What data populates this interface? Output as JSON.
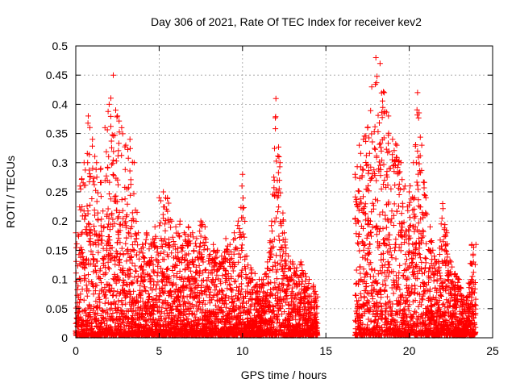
{
  "chart_data": {
    "type": "scatter",
    "title": "Day 306 of 2021, Rate Of TEC Index for receiver kev2",
    "xlabel": "GPS time / hours",
    "ylabel": "ROTI / TECUs",
    "xlim": [
      0,
      25
    ],
    "ylim": [
      0,
      0.5
    ],
    "x_ticks": [
      0,
      5,
      10,
      15,
      20,
      25
    ],
    "y_ticks": [
      0,
      0.05,
      0.1,
      0.15,
      0.2,
      0.25,
      0.3,
      0.35,
      0.4,
      0.45,
      0.5
    ],
    "grid": true,
    "marker": "+",
    "marker_color": "#ff0000",
    "data_gap_hours": [
      14.7,
      16.6
    ],
    "envelope": [
      [
        0.0,
        0.18
      ],
      [
        0.25,
        0.26
      ],
      [
        0.5,
        0.3
      ],
      [
        0.75,
        0.38
      ],
      [
        1.0,
        0.34
      ],
      [
        1.25,
        0.3
      ],
      [
        1.5,
        0.29
      ],
      [
        1.75,
        0.36
      ],
      [
        2.0,
        0.4
      ],
      [
        2.25,
        0.45
      ],
      [
        2.5,
        0.38
      ],
      [
        2.75,
        0.36
      ],
      [
        3.0,
        0.33
      ],
      [
        3.25,
        0.34
      ],
      [
        3.5,
        0.3
      ],
      [
        3.75,
        0.18
      ],
      [
        4.0,
        0.16
      ],
      [
        4.25,
        0.18
      ],
      [
        4.5,
        0.16
      ],
      [
        4.75,
        0.19
      ],
      [
        5.0,
        0.24
      ],
      [
        5.25,
        0.25
      ],
      [
        5.5,
        0.24
      ],
      [
        5.75,
        0.2
      ],
      [
        6.0,
        0.19
      ],
      [
        6.25,
        0.2
      ],
      [
        6.5,
        0.18
      ],
      [
        6.75,
        0.19
      ],
      [
        7.0,
        0.18
      ],
      [
        7.25,
        0.17
      ],
      [
        7.5,
        0.2
      ],
      [
        7.75,
        0.19
      ],
      [
        8.0,
        0.14
      ],
      [
        8.25,
        0.16
      ],
      [
        8.5,
        0.15
      ],
      [
        8.75,
        0.14
      ],
      [
        9.0,
        0.17
      ],
      [
        9.25,
        0.16
      ],
      [
        9.5,
        0.18
      ],
      [
        9.75,
        0.2
      ],
      [
        10.0,
        0.28
      ],
      [
        10.25,
        0.14
      ],
      [
        10.5,
        0.12
      ],
      [
        10.75,
        0.11
      ],
      [
        11.0,
        0.1
      ],
      [
        11.25,
        0.1
      ],
      [
        11.5,
        0.13
      ],
      [
        11.75,
        0.2
      ],
      [
        12.0,
        0.41
      ],
      [
        12.25,
        0.3
      ],
      [
        12.5,
        0.18
      ],
      [
        12.75,
        0.14
      ],
      [
        13.0,
        0.13
      ],
      [
        13.25,
        0.12
      ],
      [
        13.5,
        0.13
      ],
      [
        13.75,
        0.11
      ],
      [
        14.0,
        0.1
      ],
      [
        14.25,
        0.09
      ],
      [
        14.5,
        0.07
      ],
      [
        16.75,
        0.28
      ],
      [
        17.0,
        0.33
      ],
      [
        17.25,
        0.34
      ],
      [
        17.5,
        0.36
      ],
      [
        17.75,
        0.43
      ],
      [
        18.0,
        0.48
      ],
      [
        18.25,
        0.47
      ],
      [
        18.5,
        0.42
      ],
      [
        18.75,
        0.38
      ],
      [
        19.0,
        0.34
      ],
      [
        19.25,
        0.33
      ],
      [
        19.5,
        0.3
      ],
      [
        19.75,
        0.26
      ],
      [
        20.0,
        0.25
      ],
      [
        20.25,
        0.3
      ],
      [
        20.5,
        0.42
      ],
      [
        20.75,
        0.33
      ],
      [
        21.0,
        0.24
      ],
      [
        21.25,
        0.19
      ],
      [
        21.5,
        0.14
      ],
      [
        21.75,
        0.13
      ],
      [
        22.0,
        0.23
      ],
      [
        22.25,
        0.18
      ],
      [
        22.5,
        0.13
      ],
      [
        22.75,
        0.11
      ],
      [
        23.0,
        0.1
      ],
      [
        23.25,
        0.07
      ],
      [
        23.5,
        0.07
      ],
      [
        23.75,
        0.16
      ],
      [
        24.0,
        0.16
      ]
    ]
  }
}
